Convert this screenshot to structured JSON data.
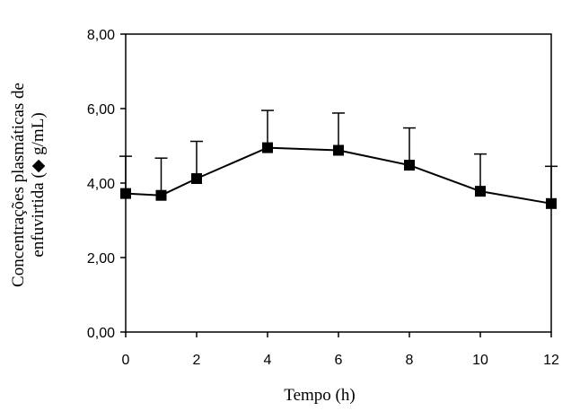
{
  "chart_data": {
    "type": "line",
    "title": "",
    "xlabel": "Tempo (h)",
    "ylabel_line1": "Concentrações plasmáticas de",
    "ylabel_line2": "enfuvirtida (◆ g/mL)",
    "xlim": [
      0,
      12
    ],
    "ylim": [
      0,
      8
    ],
    "x_ticks": [
      0,
      2,
      4,
      6,
      8,
      10,
      12
    ],
    "x_tick_labels": [
      "0",
      "2",
      "4",
      "6",
      "8",
      "10",
      "12"
    ],
    "y_ticks": [
      0,
      2,
      4,
      6,
      8
    ],
    "y_tick_labels": [
      "0,00",
      "2,00",
      "4,00",
      "6,00",
      "8,00"
    ],
    "grid": false,
    "legend": "none",
    "series": [
      {
        "x": [
          0,
          1,
          2,
          4,
          6,
          8,
          10,
          12
        ],
        "y": [
          3.72,
          3.67,
          4.12,
          4.95,
          4.88,
          4.48,
          3.78,
          3.45
        ],
        "error_upper": [
          1.0,
          1.0,
          1.0,
          1.0,
          1.0,
          1.0,
          1.0,
          1.0
        ]
      }
    ],
    "colors": {
      "line": "#000000",
      "marker": "#000000"
    }
  }
}
